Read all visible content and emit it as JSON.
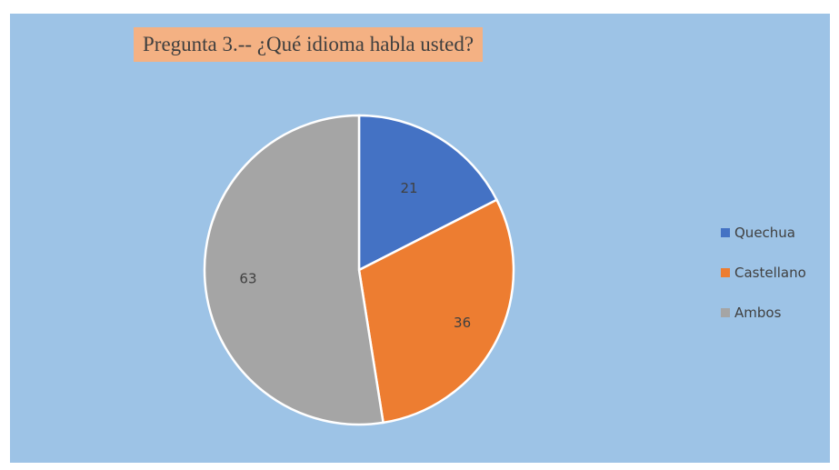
{
  "chart_data": {
    "type": "pie",
    "title": "Pregunta 3.-- ¿Qué idioma  habla usted?",
    "categories": [
      "Quechua",
      "Castellano",
      "Ambos"
    ],
    "values": [
      21,
      36,
      63
    ],
    "colors": [
      "#4472c4",
      "#ed7d31",
      "#a5a5a5"
    ],
    "data_labels": [
      "21",
      "36",
      "63"
    ],
    "legend_position": "right",
    "background": "#9dc3e6"
  }
}
